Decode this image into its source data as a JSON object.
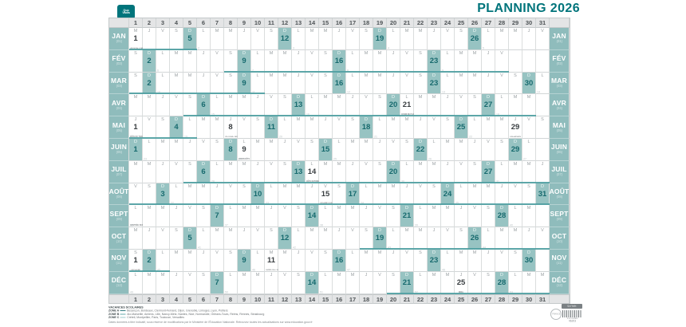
{
  "title": "PLANNING 2026",
  "logo": {
    "line1": "Quo",
    "line2": "Vadis"
  },
  "colors": {
    "accent": "#00747B",
    "sunday_bg": "#97C3C2",
    "label_bg": "#8FBCBC",
    "big_number": "#176A6E",
    "vacation_line": "#4D9EA1"
  },
  "planner": {
    "dow_letters": [
      "L",
      "M",
      "M",
      "J",
      "V",
      "S",
      "D"
    ],
    "day_numbers": [
      1,
      2,
      3,
      4,
      5,
      6,
      7,
      8,
      9,
      10,
      11,
      12,
      13,
      14,
      15,
      16,
      17,
      18,
      19,
      20,
      21,
      22,
      23,
      24,
      25,
      26,
      27,
      28,
      29,
      30,
      31
    ],
    "months": [
      {
        "name": "JAN",
        "num": "(01)",
        "start": 2,
        "days": 31,
        "first_week": 2,
        "vac": [
          1,
          5
        ],
        "holidays": [
          {
            "day": 1,
            "label": "JOUR DE L'AN"
          }
        ]
      },
      {
        "name": "FÉV",
        "num": "(02)",
        "start": 5,
        "days": 28,
        "first_week": 6,
        "vac": [
          8,
          28
        ],
        "holidays": []
      },
      {
        "name": "MAR",
        "num": "(03)",
        "start": 5,
        "days": 31,
        "first_week": 10,
        "vac": [
          1,
          10
        ],
        "holidays": []
      },
      {
        "name": "AVR",
        "num": "(04)",
        "start": 1,
        "days": 30,
        "first_week": 15,
        "vac": [
          5,
          30
        ],
        "holidays": [
          {
            "day": 21,
            "label": "LUNDI DE PÂQUES"
          }
        ]
      },
      {
        "name": "MAI",
        "num": "(05)",
        "start": 3,
        "days": 31,
        "first_week": 19,
        "vac": [
          1,
          5
        ],
        "holidays": [
          {
            "day": 1,
            "label": "FÊTE DU TRAVAIL"
          },
          {
            "day": 8,
            "label": "VICTOIRE 1945"
          },
          {
            "day": 29,
            "label": "ASCENSION"
          }
        ]
      },
      {
        "name": "JUIN",
        "num": "(06)",
        "start": 6,
        "days": 30,
        "first_week": 23,
        "vac": null,
        "holidays": [
          {
            "day": 9,
            "label": "PENTECÔTE"
          }
        ]
      },
      {
        "name": "JUIL",
        "num": "(07)",
        "start": 1,
        "days": 31,
        "first_week": 28,
        "vac": [
          5,
          31
        ],
        "holidays": [
          {
            "day": 14,
            "label": "FÊTE NATIONALE"
          }
        ]
      },
      {
        "name": "AOÛT",
        "num": "(08)",
        "start": 4,
        "days": 31,
        "first_week": 32,
        "vac": [
          1,
          31
        ],
        "holidays": [
          {
            "day": 15,
            "label": "ASSOMPTION"
          }
        ]
      },
      {
        "name": "SEPT",
        "num": "(09)",
        "start": 0,
        "days": 30,
        "first_week": 36,
        "vac": null,
        "holidays": [
          {
            "day": 1,
            "label": "RENTRÉE DES CLASSES",
            "big": false
          }
        ]
      },
      {
        "name": "OCT",
        "num": "(10)",
        "start": 2,
        "days": 31,
        "first_week": 41,
        "vac": [
          18,
          31
        ],
        "holidays": []
      },
      {
        "name": "NOV",
        "num": "(11)",
        "start": 5,
        "days": 30,
        "first_week": 45,
        "vac": [
          1,
          3
        ],
        "holidays": [
          {
            "day": 1,
            "label": "TOUSSAINT"
          },
          {
            "day": 11,
            "label": "ARMISTICE 1918"
          }
        ]
      },
      {
        "name": "DÉC",
        "num": "(12)",
        "start": 0,
        "days": 31,
        "first_week": 49,
        "vac": [
          20,
          31
        ],
        "holidays": [
          {
            "day": 25,
            "label": "NOËL"
          }
        ]
      }
    ]
  },
  "legend": {
    "title": "VACANCES SCOLAIRES",
    "zones": [
      {
        "name": "ZONE A",
        "color": "#347E83",
        "text": "Besançon, Bordeaux, Clermont-Ferrand, Dijon, Grenoble, Limoges, Lyon, Poitiers"
      },
      {
        "name": "ZONE B",
        "color": "#63A8AB",
        "text": "Aix-Marseille, Amiens, Lille, Nancy-Metz, Nantes, Nice, Normandie, Orléans-Tours, Reims, Rennes, Strasbourg"
      },
      {
        "name": "ZONE C",
        "color": "#9DCACB",
        "text": "Créteil, Montpellier, Paris, Toulouse, Versailles"
      }
    ],
    "note": "Dates données à titre indicatif, sous réserve de modifications par le Ministère de l'Éducation Nationale. Retrouvez toutes les actualisations sur www.education.gouv.fr"
  },
  "badges": {
    "stamp": "FRANCE",
    "tag": "Quo Vadis",
    "barcode_text": "3 371010 46203"
  }
}
